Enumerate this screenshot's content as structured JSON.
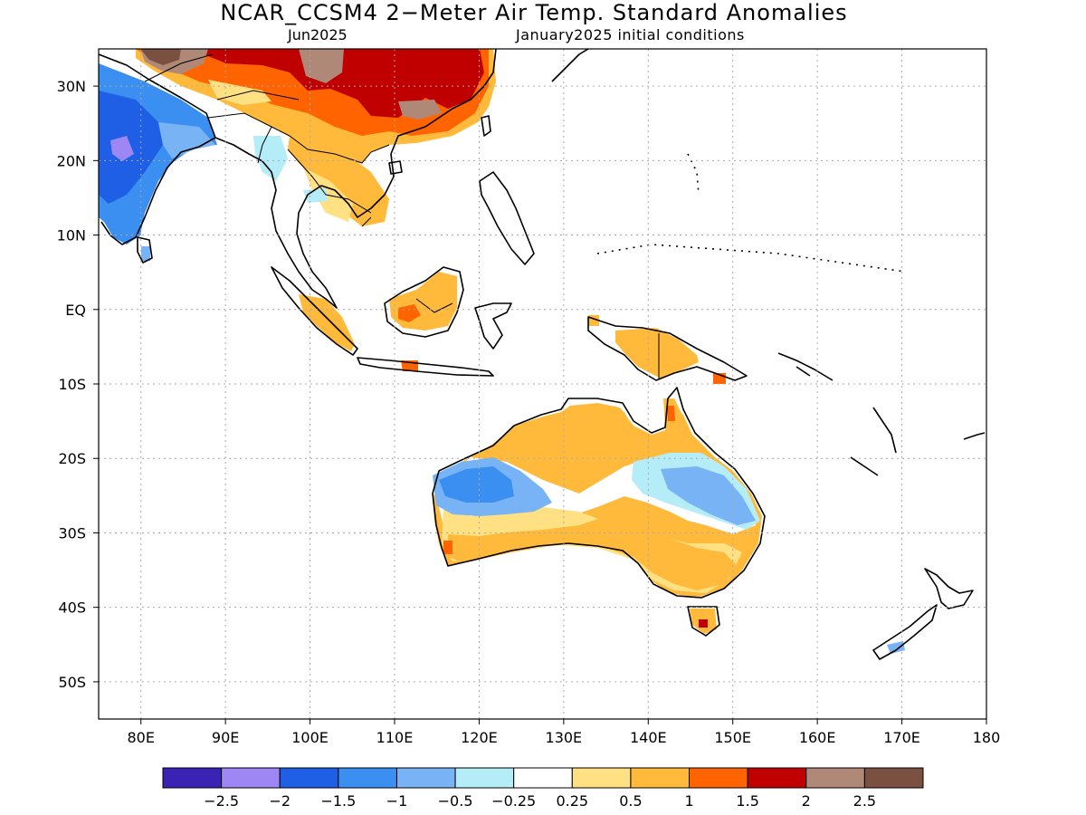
{
  "title": "NCAR_CCSM4 2−Meter Air Temp. Standard Anomalies",
  "subtitle_left": "Jun2025",
  "subtitle_right": "January2025 initial conditions",
  "map": {
    "lon_range": [
      75,
      180
    ],
    "lat_range": [
      -55,
      35
    ],
    "lon_ticks": [
      {
        "value": 80,
        "label": "80E"
      },
      {
        "value": 90,
        "label": "90E"
      },
      {
        "value": 100,
        "label": "100E"
      },
      {
        "value": 110,
        "label": "110E"
      },
      {
        "value": 120,
        "label": "120E"
      },
      {
        "value": 130,
        "label": "130E"
      },
      {
        "value": 140,
        "label": "140E"
      },
      {
        "value": 150,
        "label": "150E"
      },
      {
        "value": 160,
        "label": "160E"
      },
      {
        "value": 170,
        "label": "170E"
      },
      {
        "value": 180,
        "label": "180"
      }
    ],
    "lat_ticks": [
      {
        "value": 30,
        "label": "30N"
      },
      {
        "value": 20,
        "label": "20N"
      },
      {
        "value": 10,
        "label": "10N"
      },
      {
        "value": 0,
        "label": "EQ"
      },
      {
        "value": -10,
        "label": "10S"
      },
      {
        "value": -20,
        "label": "20S"
      },
      {
        "value": -30,
        "label": "30S"
      },
      {
        "value": -40,
        "label": "40S"
      },
      {
        "value": -50,
        "label": "50S"
      }
    ],
    "grid": "dotted"
  },
  "colorbar": {
    "colors": [
      "#3a23b4",
      "#9e87f5",
      "#1f5fe6",
      "#3a8ff0",
      "#78b4f5",
      "#b4ecf8",
      "#ffffff",
      "#ffe082",
      "#ffba3c",
      "#ff6400",
      "#c00000",
      "#b08878",
      "#7a5040"
    ],
    "labels": [
      "−2.5",
      "−2",
      "−1.5",
      "−1",
      "−0.5",
      "−0.25",
      "0.25",
      "0.5",
      "1",
      "1.5",
      "2",
      "2.5"
    ]
  }
}
